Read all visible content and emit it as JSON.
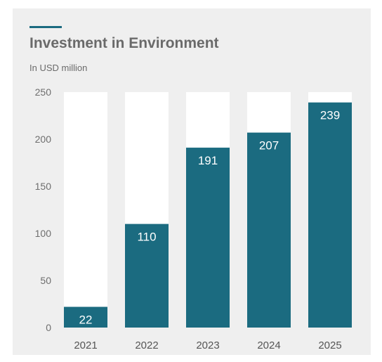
{
  "chart_data": {
    "type": "bar",
    "title": "Investment in Environment",
    "subtitle": "In USD million",
    "categories": [
      "2021",
      "2022",
      "2023",
      "2024",
      "2025"
    ],
    "values": [
      22,
      110,
      191,
      207,
      239
    ],
    "ylim": [
      0,
      250
    ],
    "yticks": [
      0,
      50,
      100,
      150,
      200,
      250
    ],
    "xlabel": "",
    "ylabel": "",
    "grid": false,
    "data_labels": true
  },
  "colors": {
    "bar": "#1b6b80",
    "track": "#ffffff",
    "panel": "#efefef",
    "accent": "#1b6b80"
  }
}
